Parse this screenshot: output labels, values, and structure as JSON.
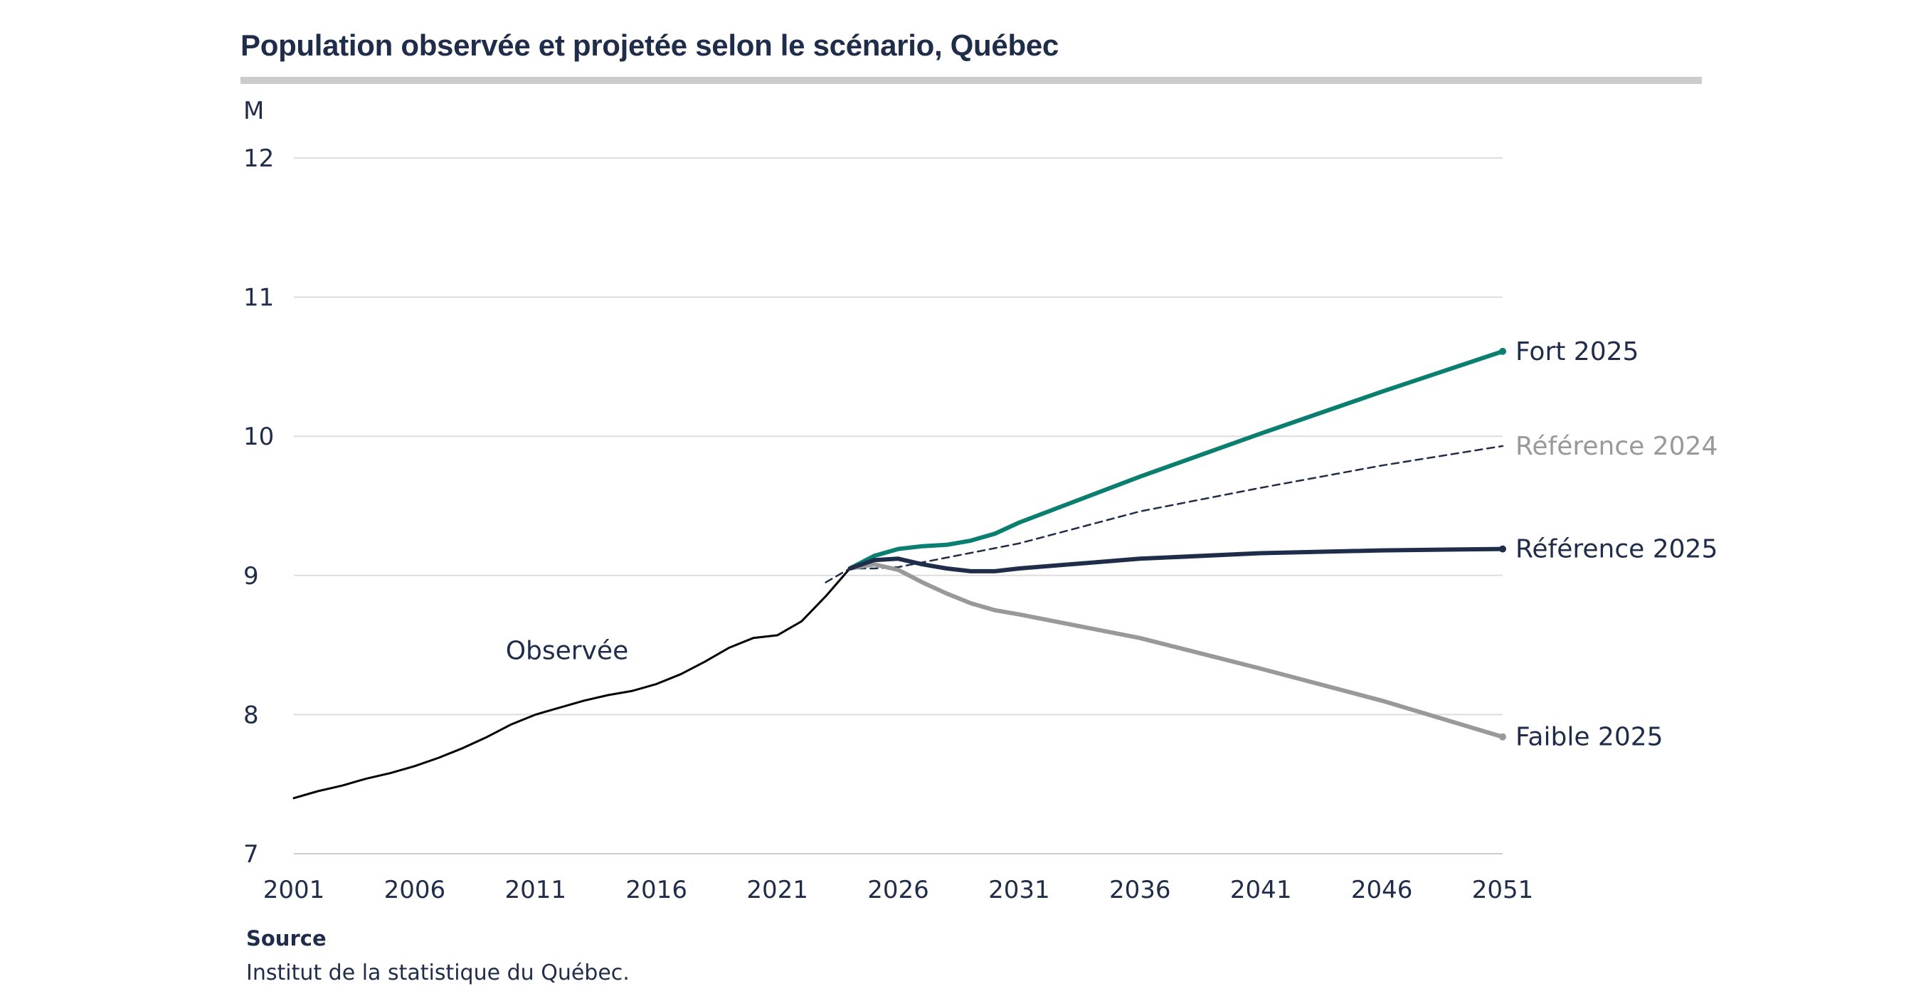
{
  "title": "Population observée et projetée selon le scénario, Québec",
  "source": {
    "label": "Source",
    "text": "Institut de la statistique du Québec."
  },
  "colors": {
    "observed": "#000000",
    "fort": "#0a7f70",
    "reference2025": "#1f2d4a",
    "reference2024": "#1f2d4a",
    "faible": "#999999",
    "reference2024_label": "#999999",
    "text": "#1f2d4a",
    "grid": "#dddddd"
  },
  "chart_data": {
    "type": "line",
    "ylabel": "M",
    "xlabel": "",
    "xlim": [
      2001,
      2051
    ],
    "ylim": [
      7,
      12
    ],
    "x_ticks": [
      2001,
      2006,
      2011,
      2016,
      2021,
      2026,
      2031,
      2036,
      2041,
      2046,
      2051
    ],
    "y_ticks": [
      7,
      8,
      9,
      10,
      11,
      12
    ],
    "grid": "horizontal",
    "legend": "direct labels at line ends",
    "series": [
      {
        "name": "Observée",
        "style": "solid-thin",
        "color_key": "observed",
        "x": [
          2001,
          2002,
          2003,
          2004,
          2005,
          2006,
          2007,
          2008,
          2009,
          2010,
          2011,
          2012,
          2013,
          2014,
          2015,
          2016,
          2017,
          2018,
          2019,
          2020,
          2021,
          2022,
          2023,
          2024
        ],
        "y": [
          7.4,
          7.45,
          7.49,
          7.54,
          7.58,
          7.63,
          7.69,
          7.76,
          7.84,
          7.93,
          8.0,
          8.05,
          8.1,
          8.14,
          8.17,
          8.22,
          8.29,
          8.38,
          8.48,
          8.55,
          8.57,
          8.67,
          8.85,
          9.05
        ]
      },
      {
        "name": "Fort 2025",
        "style": "solid-thick",
        "color_key": "fort",
        "x": [
          2024,
          2025,
          2026,
          2027,
          2028,
          2029,
          2030,
          2031,
          2036,
          2041,
          2046,
          2051
        ],
        "y": [
          9.05,
          9.14,
          9.19,
          9.21,
          9.22,
          9.25,
          9.3,
          9.38,
          9.71,
          10.02,
          10.32,
          10.61
        ]
      },
      {
        "name": "Référence 2024",
        "style": "dashed",
        "color_key": "reference2024",
        "x": [
          2023,
          2024,
          2025,
          2026,
          2031,
          2036,
          2041,
          2046,
          2051
        ],
        "y": [
          8.95,
          9.05,
          9.05,
          9.06,
          9.23,
          9.46,
          9.63,
          9.79,
          9.93
        ]
      },
      {
        "name": "Référence 2025",
        "style": "solid-thick",
        "color_key": "reference2025",
        "x": [
          2024,
          2025,
          2026,
          2027,
          2028,
          2029,
          2030,
          2031,
          2036,
          2041,
          2046,
          2051
        ],
        "y": [
          9.05,
          9.11,
          9.12,
          9.08,
          9.05,
          9.03,
          9.03,
          9.05,
          9.12,
          9.16,
          9.18,
          9.19
        ]
      },
      {
        "name": "Faible 2025",
        "style": "solid-thick",
        "color_key": "faible",
        "x": [
          2024,
          2025,
          2026,
          2027,
          2028,
          2029,
          2030,
          2031,
          2036,
          2041,
          2046,
          2051
        ],
        "y": [
          9.05,
          9.08,
          9.04,
          8.95,
          8.87,
          8.8,
          8.75,
          8.72,
          8.55,
          8.33,
          8.1,
          7.84
        ]
      }
    ],
    "annotations": [
      {
        "text": "Observée",
        "x": 2012.3,
        "y": 8.46
      },
      {
        "text": "Fort 2025",
        "series": "Fort 2025"
      },
      {
        "text": "Référence 2024",
        "series": "Référence 2024"
      },
      {
        "text": "Référence 2025",
        "series": "Référence 2025"
      },
      {
        "text": "Faible 2025",
        "series": "Faible 2025"
      }
    ]
  }
}
